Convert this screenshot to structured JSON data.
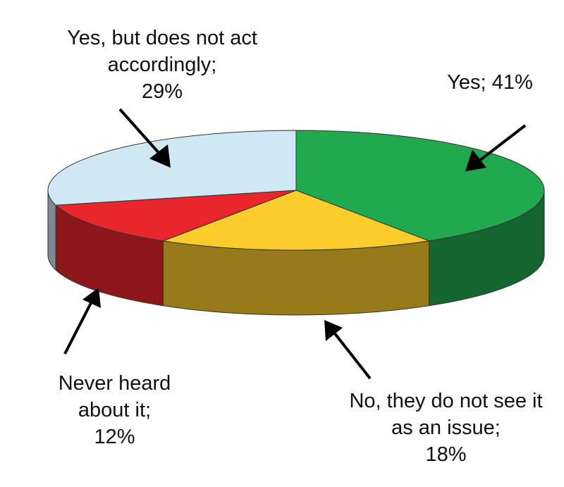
{
  "chart_data": {
    "type": "pie",
    "categories": [
      "Yes;",
      "No, they do not see it as an issue;",
      "Never heard about it;",
      "Yes, but does not act accordingly;"
    ],
    "values": [
      41,
      18,
      12,
      29
    ],
    "value_labels": [
      "41%",
      "18%",
      "12%",
      "29%"
    ],
    "colors": [
      "#21a94f",
      "#fccb2c",
      "#e8262b",
      "#cfe8f3"
    ]
  }
}
